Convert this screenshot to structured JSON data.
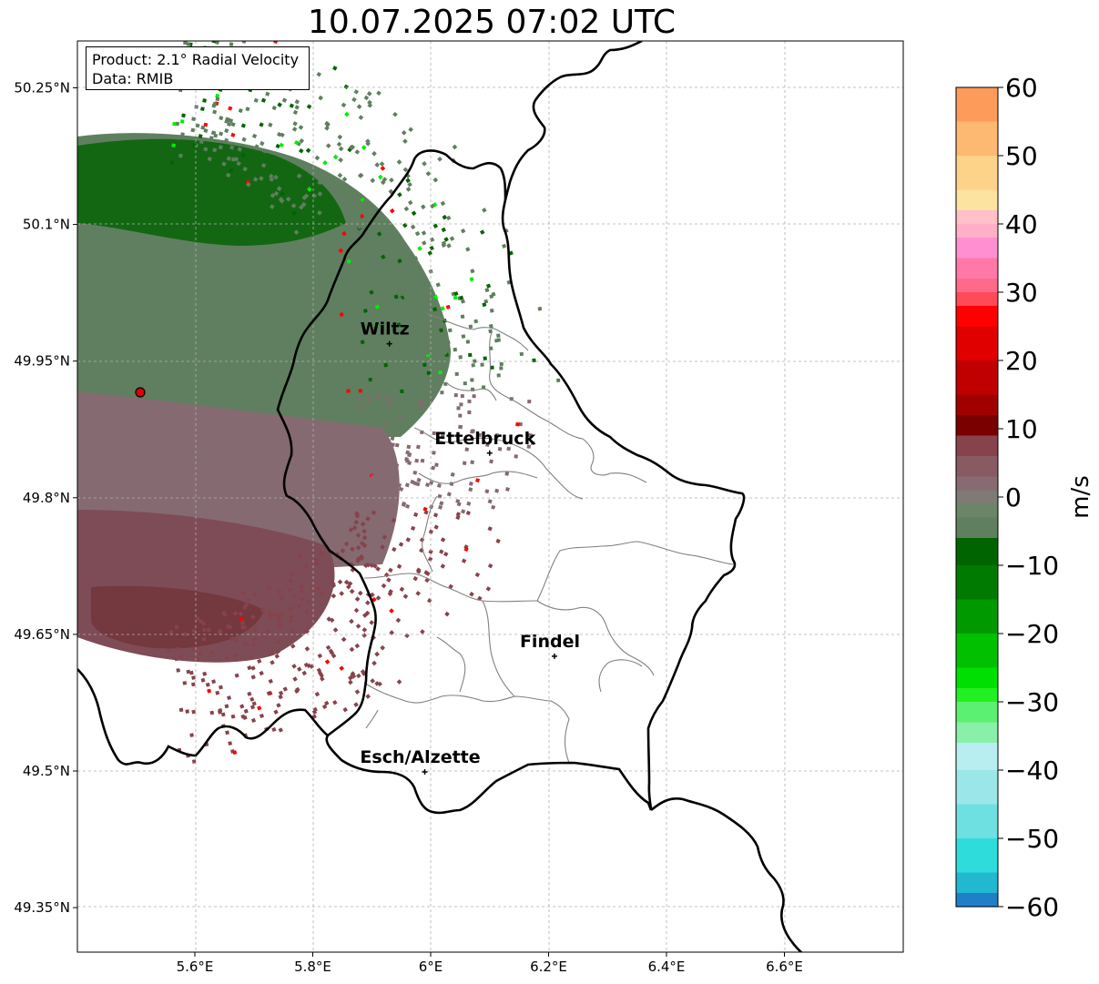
{
  "title": "10.07.2025 07:02 UTC",
  "info": {
    "product": "Product: 2.1° Radial Velocity",
    "data": "Data: RMIB"
  },
  "axes": {
    "lon_ticks": [
      "5.6°E",
      "5.8°E",
      "6°E",
      "6.2°E",
      "6.4°E",
      "6.6°E"
    ],
    "lat_ticks": [
      "50.25°N",
      "50.1°N",
      "49.95°N",
      "49.8°N",
      "49.65°N",
      "49.5°N",
      "49.35°N"
    ]
  },
  "cities": [
    {
      "name": "Wiltz",
      "lon": 5.93,
      "lat": 49.969
    },
    {
      "name": "Ettelbruck",
      "lon": 6.1,
      "lat": 49.849
    },
    {
      "name": "Findel",
      "lon": 6.21,
      "lat": 49.626
    },
    {
      "name": "Esch/Alzette",
      "lon": 5.99,
      "lat": 49.499
    }
  ],
  "radar_site": {
    "lon": 5.505,
    "lat": 49.915
  },
  "colorbar": {
    "label": "m/s",
    "ticks": [
      "60",
      "50",
      "40",
      "30",
      "20",
      "10",
      "0",
      "−10",
      "−20",
      "−30",
      "−40",
      "−50",
      "−60"
    ],
    "colors": {
      "orange": "#fda35f",
      "peach": "#fdc380",
      "pink": "#ff88cc",
      "coral": "#ff5c72",
      "red": "#ff0000",
      "darkred": "#6e0000",
      "velo_brown": "#87434b",
      "velo_grey": "#856a72",
      "velo_green": "#5f7f5f",
      "darkgreen": "#006400",
      "green": "#00ee00",
      "lightgreen": "#88f0a8",
      "pale_cyan": "#b8eef0",
      "cyan": "#27dedf",
      "blue": "#1f80c8"
    }
  }
}
